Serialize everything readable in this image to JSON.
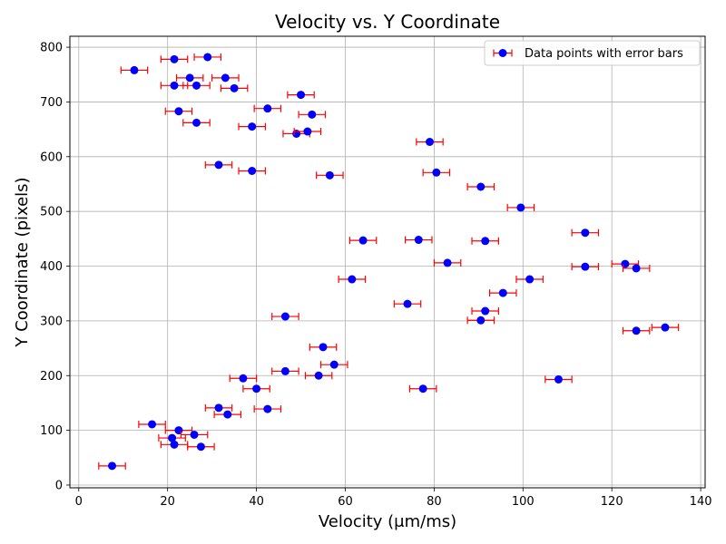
{
  "chart_data": {
    "type": "scatter",
    "title": "Velocity vs. Y Coordinate",
    "xlabel": "Velocity (μm/ms)",
    "ylabel": "Y Coordinate (pixels)",
    "xlim": [
      -2,
      141
    ],
    "ylim": [
      -5,
      820
    ],
    "xticks": [
      0,
      20,
      40,
      60,
      80,
      100,
      120,
      140
    ],
    "yticks": [
      0,
      100,
      200,
      300,
      400,
      500,
      600,
      700,
      800
    ],
    "grid": true,
    "legend_position": "top-right",
    "marker_color": "#0000ff",
    "error_color": "#ff0000",
    "series": [
      {
        "name": "Data points with error bars",
        "x_error": 3,
        "points": [
          [
            7.5,
            35
          ],
          [
            16.5,
            111
          ],
          [
            21,
            86
          ],
          [
            22.5,
            100
          ],
          [
            21.5,
            74
          ],
          [
            26,
            92
          ],
          [
            27.5,
            70
          ],
          [
            31.5,
            141
          ],
          [
            33.5,
            129
          ],
          [
            37,
            195
          ],
          [
            40,
            176
          ],
          [
            42.5,
            139
          ],
          [
            46.5,
            208
          ],
          [
            54,
            200
          ],
          [
            55,
            252
          ],
          [
            57.5,
            220
          ],
          [
            46.5,
            308
          ],
          [
            61.5,
            376
          ],
          [
            64,
            447
          ],
          [
            56.5,
            566
          ],
          [
            39,
            574
          ],
          [
            31.5,
            585
          ],
          [
            39,
            655
          ],
          [
            49,
            642
          ],
          [
            51.5,
            646
          ],
          [
            52.5,
            677
          ],
          [
            42.5,
            688
          ],
          [
            50,
            713
          ],
          [
            22.5,
            683
          ],
          [
            26.5,
            662
          ],
          [
            21.5,
            730
          ],
          [
            26.5,
            730
          ],
          [
            35,
            725
          ],
          [
            25,
            744
          ],
          [
            33,
            744
          ],
          [
            12.5,
            758
          ],
          [
            21.5,
            778
          ],
          [
            29,
            782
          ],
          [
            79,
            627
          ],
          [
            80.5,
            571
          ],
          [
            74,
            331
          ],
          [
            76.5,
            448
          ],
          [
            83,
            406
          ],
          [
            77.5,
            176
          ],
          [
            90.5,
            545
          ],
          [
            91.5,
            446
          ],
          [
            91.5,
            318
          ],
          [
            90.5,
            301
          ],
          [
            95.5,
            351
          ],
          [
            99.5,
            507
          ],
          [
            101.5,
            376
          ],
          [
            108,
            193
          ],
          [
            114,
            461
          ],
          [
            114,
            399
          ],
          [
            123,
            404
          ],
          [
            125.5,
            396
          ],
          [
            125.5,
            282
          ],
          [
            132,
            288
          ]
        ]
      }
    ]
  }
}
